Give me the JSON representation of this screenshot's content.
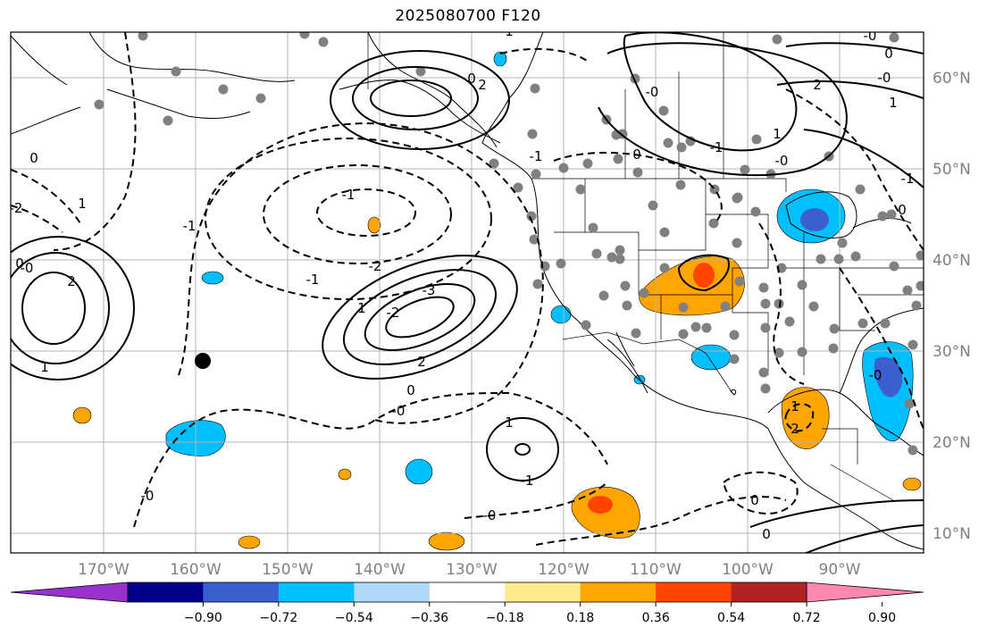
{
  "title": "2025080700 F120",
  "map": {
    "lon_labels": [
      "170°W",
      "160°W",
      "150°W",
      "140°W",
      "130°W",
      "120°W",
      "110°W",
      "100°W",
      "90°W"
    ],
    "lat_labels": [
      "60°N",
      "50°N",
      "40°N",
      "30°N",
      "20°N",
      "10°N"
    ],
    "grid": true,
    "contour_labels": [
      "2",
      "1",
      "0",
      "-0",
      "-1",
      "-2",
      "-3",
      "1",
      "2",
      "0",
      "-0",
      "-1",
      "-2",
      "1",
      "-1",
      "-0",
      "0",
      "2",
      "1",
      "-1",
      "-0",
      "0",
      "-1",
      "1",
      "2",
      "-0",
      "0",
      "-0",
      "1",
      "-1",
      "0",
      "-0",
      "1",
      "0",
      "0",
      "2",
      "-0",
      "-2",
      "0",
      "1",
      "-1",
      "-0"
    ]
  },
  "colorbar": {
    "ticks": [
      "−0.90",
      "−0.72",
      "−0.54",
      "−0.36",
      "−0.18",
      "0.18",
      "0.36",
      "0.54",
      "0.72",
      "0.90"
    ],
    "colors": [
      "#9932cc",
      "#00008b",
      "#3c5fd0",
      "#00bfff",
      "#add8f7",
      "#ffffff",
      "#ffeb8c",
      "#ffa500",
      "#ff4500",
      "#b22222",
      "#ff88b0"
    ]
  }
}
